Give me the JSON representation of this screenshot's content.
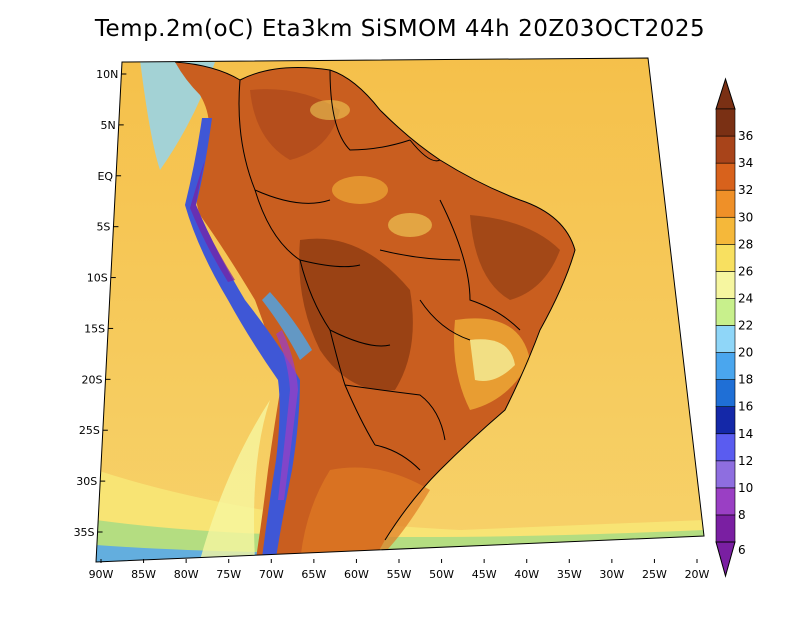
{
  "title": "Temp.2m(oC) Eta3km SiSMOM 44h 20Z03OCT2025",
  "map": {
    "variable": "Temp.2m",
    "units": "oC",
    "lon_labels": [
      "90W",
      "85W",
      "80W",
      "75W",
      "70W",
      "65W",
      "60W",
      "55W",
      "50W",
      "45W",
      "40W",
      "35W",
      "30W",
      "25W",
      "20W"
    ],
    "lat_labels": [
      "10N",
      "5N",
      "EQ",
      "5S",
      "10S",
      "15S",
      "20S",
      "25S",
      "30S",
      "35S"
    ],
    "lon_range": [
      -90,
      -20
    ],
    "lat_range": [
      -38,
      12
    ],
    "colors": {
      "ocean_north": "#f5c04a",
      "ocean_south": "#f7d26a",
      "land_base": "#c95e1f",
      "land_hot": "#8a3a12",
      "coast_cool": "#74c6f0",
      "andes": "#3f57d6",
      "border": "#000000"
    }
  },
  "colorbar": {
    "levels": [
      "6",
      "8",
      "10",
      "12",
      "14",
      "16",
      "18",
      "20",
      "22",
      "24",
      "26",
      "28",
      "30",
      "32",
      "34",
      "36"
    ],
    "colors": [
      "#7a1fa2",
      "#9a3fc4",
      "#8e6ee0",
      "#5a5cf0",
      "#1428a8",
      "#1f6fd6",
      "#4aa6ee",
      "#8fd6f8",
      "#c8f08c",
      "#f6f6a0",
      "#f8e060",
      "#f5b83a",
      "#ef9028",
      "#d8621c",
      "#a8441a",
      "#7a3014"
    ]
  }
}
